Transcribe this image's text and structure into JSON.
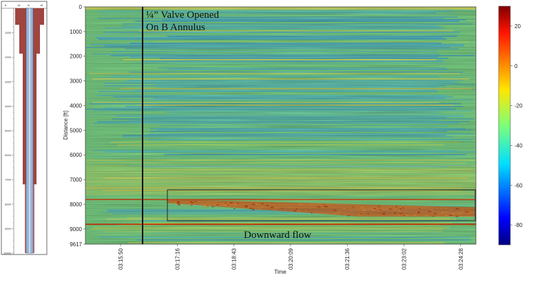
{
  "chart_data": {
    "type": "heatmap",
    "xlabel": "Time",
    "ylabel": "Distance [ft]",
    "x_ticks": [
      "03:15:50",
      "03:17:16",
      "03:18:43",
      "03:20:09",
      "03:21:36",
      "03:23:02",
      "03:24:28"
    ],
    "y_ticks": [
      "0",
      "1000",
      "2000",
      "3000",
      "4000",
      "5000",
      "6000",
      "7000",
      "8000",
      "9000",
      "9617"
    ],
    "ylim": [
      0,
      9617
    ],
    "colorbar": {
      "ticks": [
        "20",
        "0",
        "-20",
        "-40",
        "-60",
        "-80"
      ],
      "range": [
        -90,
        30
      ],
      "colormap": "jet"
    },
    "annotations": [
      {
        "text_line1": "¼” Valve Opened",
        "text_line2": "On B Annulus",
        "time": "03:16:25"
      },
      {
        "text": "Downward flow",
        "depth_range": [
          7400,
          8650
        ]
      }
    ],
    "grid": false
  },
  "wellbore": {
    "header": [
      "ft",
      "16",
      "in",
      "16"
    ],
    "depth_ticks": [
      "1000",
      "2000",
      "3000",
      "4000",
      "5000",
      "6000",
      "7000",
      "8000",
      "9000",
      "10000"
    ]
  },
  "colors": {
    "background": "#7fd88a",
    "hot": "#d4410e",
    "cool": "#3fa6e0",
    "casing": "#a0453f"
  }
}
